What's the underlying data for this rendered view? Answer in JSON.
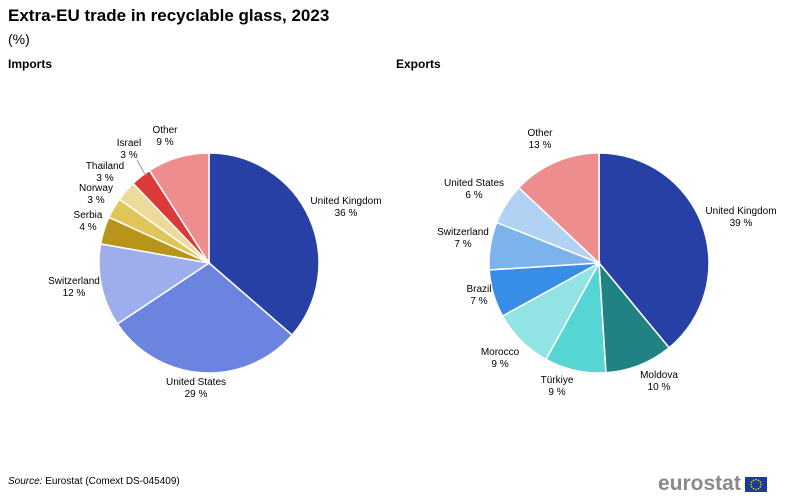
{
  "title": "Extra-EU trade in recyclable glass, 2023",
  "subtitle": "(%)",
  "source_label": "Source:",
  "source_text": "Eurostat (Comext DS-045409)",
  "logo_text": "eurostat",
  "chart_data": [
    {
      "type": "pie",
      "title": "Imports",
      "unit": "%",
      "slices": [
        {
          "label": "United Kingdom",
          "value": 36,
          "color": "#2640a6"
        },
        {
          "label": "United States",
          "value": 29,
          "color": "#6b84e0"
        },
        {
          "label": "Switzerland",
          "value": 12,
          "color": "#9eadeb"
        },
        {
          "label": "Serbia",
          "value": 4,
          "color": "#b8941b"
        },
        {
          "label": "Norway",
          "value": 3,
          "color": "#e0c659"
        },
        {
          "label": "Thailand",
          "value": 3,
          "color": "#ecdb9b"
        },
        {
          "label": "Israel",
          "value": 3,
          "color": "#dc3a3a"
        },
        {
          "label": "Other",
          "value": 9,
          "color": "#ee8d8d"
        }
      ]
    },
    {
      "type": "pie",
      "title": "Exports",
      "unit": "%",
      "slices": [
        {
          "label": "United Kingdom",
          "value": 39,
          "color": "#2640a6"
        },
        {
          "label": "Moldova",
          "value": 10,
          "color": "#208282"
        },
        {
          "label": "Türkiye",
          "value": 9,
          "color": "#55d6d4"
        },
        {
          "label": "Morocco",
          "value": 9,
          "color": "#92e3e3"
        },
        {
          "label": "Brazil",
          "value": 7,
          "color": "#388de6"
        },
        {
          "label": "Switzerland",
          "value": 7,
          "color": "#7cb3ec"
        },
        {
          "label": "United States",
          "value": 6,
          "color": "#b2d2f4"
        },
        {
          "label": "Other",
          "value": 13,
          "color": "#ee8d8d"
        }
      ]
    }
  ]
}
